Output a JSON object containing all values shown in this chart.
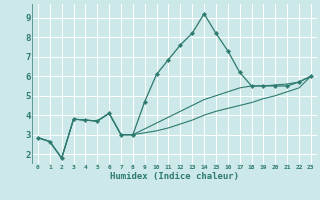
{
  "xlabel": "Humidex (Indice chaleur)",
  "bg_color": "#cce8e8",
  "grid_color": "#ffffff",
  "line_color": "#2d7a6e",
  "xlim": [
    -0.5,
    23.5
  ],
  "ylim": [
    1.5,
    9.7
  ],
  "xticks": [
    0,
    1,
    2,
    3,
    4,
    5,
    6,
    7,
    8,
    9,
    10,
    11,
    12,
    13,
    14,
    15,
    16,
    17,
    18,
    19,
    20,
    21,
    22,
    23
  ],
  "yticks": [
    2,
    3,
    4,
    5,
    6,
    7,
    8,
    9
  ],
  "series_main": [
    2.85,
    2.65,
    1.8,
    3.8,
    3.75,
    3.7,
    4.1,
    3.0,
    3.0,
    4.7,
    6.1,
    6.85,
    7.6,
    8.2,
    9.2,
    8.2,
    7.3,
    6.2,
    5.5,
    5.5,
    5.5,
    5.5,
    5.7,
    6.0
  ],
  "series_low": [
    2.85,
    2.65,
    1.8,
    3.8,
    3.75,
    3.7,
    4.1,
    3.0,
    3.0,
    3.1,
    3.2,
    3.35,
    3.55,
    3.75,
    4.0,
    4.2,
    4.35,
    4.5,
    4.65,
    4.85,
    5.0,
    5.2,
    5.4,
    6.0
  ],
  "series_mid": [
    2.85,
    2.65,
    1.8,
    3.8,
    3.75,
    3.7,
    4.1,
    3.0,
    3.0,
    3.3,
    3.6,
    3.9,
    4.2,
    4.5,
    4.8,
    5.0,
    5.2,
    5.4,
    5.5,
    5.5,
    5.55,
    5.6,
    5.7,
    6.0
  ]
}
